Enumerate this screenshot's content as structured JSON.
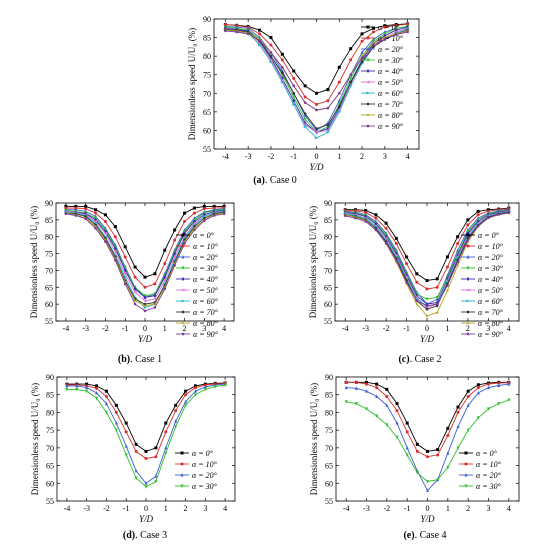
{
  "figure": {
    "ylabel": "Dimensionless speed U/U₀ (%)",
    "xlabel": "Y/D",
    "legend_prefix": "α = ",
    "colors": [
      "#000000",
      "#d4302f",
      "#3b5fd6",
      "#2ec02a",
      "#3a2aa8",
      "#e070e0",
      "#21b8c8",
      "#333333",
      "#b5a519",
      "#7a3a9a"
    ]
  },
  "chart_data": [
    {
      "type": "line",
      "caption_label": "(a)",
      "caption_text": ". Case 0",
      "x": [
        -4,
        -3.5,
        -3,
        -2.5,
        -2,
        -1.5,
        -1,
        -0.5,
        0,
        0.5,
        1,
        1.5,
        2,
        2.5,
        3,
        3.5,
        4
      ],
      "ylim": [
        55,
        90
      ],
      "yticks": [
        55,
        60,
        65,
        70,
        75,
        80,
        85,
        90
      ],
      "xticks": [
        -4,
        -3,
        -2,
        -1,
        0,
        1,
        2,
        3,
        4
      ],
      "legend_position": "top-right",
      "series": [
        {
          "name": "0°",
          "values": [
            88.5,
            88.3,
            88,
            87,
            85,
            80.5,
            76,
            72,
            70,
            71,
            77,
            82,
            86,
            87.5,
            88.2,
            88.5,
            88.7
          ]
        },
        {
          "name": "10°",
          "values": [
            88.5,
            88.2,
            87.8,
            86,
            83,
            79,
            74,
            69,
            67,
            68,
            73,
            79,
            84,
            86.5,
            87.8,
            88.3,
            88.6
          ]
        },
        {
          "name": "20°",
          "values": [
            88,
            87.8,
            87.5,
            85,
            81,
            76,
            70,
            64,
            60,
            62,
            68,
            75,
            81,
            84.5,
            86.5,
            87.5,
            88
          ]
        },
        {
          "name": "30°",
          "values": [
            87.8,
            87.5,
            87,
            84.5,
            80,
            75,
            69,
            63,
            59.5,
            61,
            67,
            74,
            80,
            84,
            86,
            87.5,
            88
          ]
        },
        {
          "name": "40°",
          "values": [
            87.5,
            87.2,
            86.8,
            84,
            79.5,
            74,
            68,
            62,
            59.5,
            60.5,
            66,
            73,
            79,
            83.5,
            85.5,
            87,
            87.8
          ]
        },
        {
          "name": "50°",
          "values": [
            87.3,
            87,
            86.5,
            83.5,
            79,
            73.5,
            67,
            61.5,
            59.5,
            60,
            65.5,
            72.5,
            78.5,
            83,
            85,
            86.5,
            87.5
          ]
        },
        {
          "name": "60°",
          "values": [
            87,
            86.8,
            86.2,
            83,
            78.5,
            73,
            67,
            61,
            58,
            59.5,
            65,
            72,
            78,
            82.5,
            84.5,
            86.2,
            87.3
          ]
        },
        {
          "name": "70°",
          "values": [
            87.2,
            87,
            86.5,
            84,
            80,
            75.5,
            70,
            64.5,
            60.5,
            61.5,
            66.5,
            73,
            78.5,
            82.5,
            84.5,
            86,
            87
          ]
        },
        {
          "name": "80°",
          "values": [
            87,
            86.8,
            86.2,
            84.5,
            81,
            77,
            72,
            67.5,
            65.5,
            66,
            70,
            75,
            80,
            83.5,
            85,
            86,
            86.8
          ]
        },
        {
          "name": "90°",
          "values": [
            86.8,
            86.5,
            86,
            84.2,
            81,
            77,
            72,
            67.5,
            65.5,
            66,
            70,
            75,
            79.5,
            83,
            84.5,
            85.8,
            86.5
          ]
        }
      ]
    },
    {
      "type": "line",
      "caption_label": "(b)",
      "caption_text": ". Case 1",
      "x": [
        -4,
        -3.5,
        -3,
        -2.5,
        -2,
        -1.5,
        -1,
        -0.5,
        0,
        0.5,
        1,
        1.5,
        2,
        2.5,
        3,
        3.5,
        4
      ],
      "ylim": [
        55,
        90
      ],
      "yticks": [
        55,
        60,
        65,
        70,
        75,
        80,
        85,
        90
      ],
      "xticks": [
        -4,
        -3,
        -2,
        -1,
        0,
        1,
        2,
        3,
        4
      ],
      "legend_position": "right",
      "series": [
        {
          "name": "0°",
          "values": [
            89,
            89,
            89,
            88,
            86.5,
            83,
            77,
            71,
            68,
            69,
            76,
            82,
            87,
            88.5,
            89,
            89,
            89
          ]
        },
        {
          "name": "10°",
          "values": [
            88.5,
            88.5,
            88.3,
            87,
            84.5,
            80,
            74,
            68,
            65,
            66,
            72,
            79,
            84.5,
            87,
            88.3,
            88.5,
            88.6
          ]
        },
        {
          "name": "20°",
          "values": [
            88,
            88,
            87.5,
            86,
            82.5,
            77.5,
            71,
            65,
            62,
            63,
            69,
            76,
            82,
            85.5,
            87.3,
            88,
            88.3
          ]
        },
        {
          "name": "30°",
          "values": [
            87.8,
            87.5,
            87,
            85.5,
            82,
            77,
            70.5,
            65,
            62.5,
            63,
            68.5,
            75.5,
            81.5,
            85,
            87,
            87.8,
            88
          ]
        },
        {
          "name": "40°",
          "values": [
            87.5,
            87.3,
            86.8,
            85,
            81.5,
            76.5,
            70,
            64.5,
            62,
            62.5,
            68,
            75,
            81,
            84.5,
            86.5,
            87.5,
            87.8
          ]
        },
        {
          "name": "50°",
          "values": [
            87.5,
            87.2,
            86.5,
            84.5,
            81,
            75.5,
            69,
            63.5,
            61,
            61.5,
            67,
            74,
            80,
            84,
            86,
            87.2,
            87.6
          ]
        },
        {
          "name": "60°",
          "values": [
            87.3,
            87,
            86.2,
            84,
            80,
            74.5,
            68,
            62,
            59,
            60,
            66,
            73,
            79.5,
            83.5,
            86,
            87,
            87.5
          ]
        },
        {
          "name": "70°",
          "values": [
            87,
            86.8,
            86,
            83.5,
            79.5,
            74,
            67,
            61.5,
            60,
            60.5,
            65.5,
            72.5,
            79,
            83,
            85.5,
            86.8,
            87.3
          ]
        },
        {
          "name": "80°",
          "values": [
            87,
            86.5,
            85.5,
            83,
            79,
            73.5,
            66.5,
            61,
            59.5,
            60,
            65,
            72,
            78.5,
            82.5,
            85,
            86.5,
            87
          ]
        },
        {
          "name": "90°",
          "values": [
            86.8,
            86.3,
            85.3,
            82.5,
            78.5,
            73,
            66,
            60,
            58,
            59,
            64.5,
            71.5,
            78,
            82,
            84.8,
            86.3,
            86.8
          ]
        }
      ]
    },
    {
      "type": "line",
      "caption_label": "(c)",
      "caption_text": ". Case 2",
      "x": [
        -4,
        -3.5,
        -3,
        -2.5,
        -2,
        -1.5,
        -1,
        -0.5,
        0,
        0.5,
        1,
        1.5,
        2,
        2.5,
        3,
        3.5,
        4
      ],
      "ylim": [
        55,
        90
      ],
      "yticks": [
        55,
        60,
        65,
        70,
        75,
        80,
        85,
        90
      ],
      "xticks": [
        -4,
        -3,
        -2,
        -1,
        0,
        1,
        2,
        3,
        4
      ],
      "legend_position": "right",
      "series": [
        {
          "name": "0°",
          "values": [
            88,
            88,
            87.8,
            86.5,
            84,
            79.5,
            74,
            69,
            67,
            67.5,
            74,
            80,
            85,
            87.5,
            88,
            88.2,
            88.5
          ]
        },
        {
          "name": "10°",
          "values": [
            87.8,
            87.7,
            87.2,
            85.5,
            82.5,
            78,
            72,
            66.5,
            64.5,
            65,
            71,
            78,
            83.5,
            86.5,
            87.6,
            88,
            88.3
          ]
        },
        {
          "name": "20°",
          "values": [
            87.5,
            87.3,
            86.5,
            84.5,
            81,
            76,
            69.5,
            63.5,
            60,
            61.5,
            68.5,
            76,
            82,
            85.5,
            87,
            87.7,
            88
          ]
        },
        {
          "name": "30°",
          "values": [
            87.3,
            87,
            86.2,
            84,
            80.5,
            75.5,
            69,
            63,
            61.5,
            62,
            68,
            75,
            81.5,
            85,
            86.8,
            87.5,
            87.9
          ]
        },
        {
          "name": "40°",
          "values": [
            87.2,
            86.8,
            86,
            83.8,
            80,
            75,
            68.5,
            62.5,
            60,
            60.5,
            67.5,
            74.5,
            81,
            84.5,
            86.5,
            87.3,
            87.8
          ]
        },
        {
          "name": "50°",
          "values": [
            87,
            86.5,
            85.5,
            83.2,
            79.5,
            74.5,
            68,
            62,
            59,
            60,
            67,
            74,
            80.5,
            84,
            86.2,
            87.1,
            87.6
          ]
        },
        {
          "name": "60°",
          "values": [
            86.8,
            86.3,
            85.3,
            83,
            79,
            74,
            67.5,
            61.5,
            59.5,
            60,
            66.5,
            73.5,
            80,
            83.7,
            86,
            87,
            87.5
          ]
        },
        {
          "name": "70°",
          "values": [
            86.5,
            86,
            85,
            82.5,
            78.5,
            73.5,
            67,
            61,
            58.5,
            59.5,
            66,
            73,
            79.5,
            83.4,
            85.8,
            86.8,
            87.3
          ]
        },
        {
          "name": "80°",
          "values": [
            86.5,
            85.8,
            84.8,
            82,
            78,
            72.5,
            66,
            60,
            56.5,
            57.5,
            64,
            71.5,
            78.5,
            83,
            85.5,
            86.5,
            87
          ]
        },
        {
          "name": "90°",
          "values": [
            86.2,
            85.5,
            84.5,
            82,
            78,
            73,
            66.5,
            61,
            59.5,
            60,
            65.5,
            72.5,
            79,
            83.2,
            85.6,
            86.6,
            87.1
          ]
        }
      ]
    },
    {
      "type": "line",
      "caption_label": "(d)",
      "caption_text": ". Case 3",
      "x": [
        -4,
        -3.5,
        -3,
        -2.5,
        -2,
        -1.5,
        -1,
        -0.5,
        0,
        0.5,
        1,
        1.5,
        2,
        2.5,
        3,
        3.5,
        4
      ],
      "ylim": [
        55,
        90
      ],
      "yticks": [
        55,
        60,
        65,
        70,
        75,
        80,
        85,
        90
      ],
      "xticks": [
        -4,
        -3,
        -2,
        -1,
        0,
        1,
        2,
        3,
        4
      ],
      "legend_position": "lower-right",
      "series": [
        {
          "name": "0°",
          "values": [
            88,
            88,
            88,
            87.5,
            86,
            82,
            77,
            71,
            69,
            70,
            77,
            82,
            86,
            87.5,
            88,
            88.2,
            88.3
          ]
        },
        {
          "name": "10°",
          "values": [
            87.8,
            87.8,
            87.5,
            86.8,
            84.5,
            80,
            74.5,
            69,
            67,
            67.5,
            74.5,
            80.5,
            85,
            87,
            87.7,
            88,
            88.2
          ]
        },
        {
          "name": "20°",
          "values": [
            87.5,
            87.5,
            87,
            85.5,
            82.5,
            77,
            70.5,
            63.5,
            60,
            62,
            70,
            77.5,
            83,
            86,
            87.2,
            87.7,
            88
          ]
        },
        {
          "name": "30°",
          "values": [
            86.5,
            86.5,
            86,
            84,
            80,
            75,
            68,
            61.5,
            59,
            60.5,
            68.5,
            76,
            82,
            85,
            86.5,
            87.3,
            87.7
          ]
        }
      ]
    },
    {
      "type": "line",
      "caption_label": "(e)",
      "caption_text": ". Case 4",
      "x": [
        -4,
        -3.5,
        -3,
        -2.5,
        -2,
        -1.5,
        -1,
        -0.5,
        0,
        0.5,
        1,
        1.5,
        2,
        2.5,
        3,
        3.5,
        4
      ],
      "ylim": [
        55,
        90
      ],
      "yticks": [
        55,
        60,
        65,
        70,
        75,
        80,
        85,
        90
      ],
      "xticks": [
        -4,
        -3,
        -2,
        -1,
        0,
        1,
        2,
        3,
        4
      ],
      "legend_position": "lower-right",
      "series": [
        {
          "name": "0°",
          "values": [
            88.5,
            88.5,
            88.5,
            88,
            86.5,
            82.5,
            77,
            71,
            69,
            69.5,
            75.5,
            81.5,
            86,
            87.8,
            88.3,
            88.5,
            88.5
          ]
        },
        {
          "name": "10°",
          "values": [
            88.5,
            88.5,
            88,
            87,
            84.5,
            80.5,
            74.5,
            69,
            67.5,
            68,
            73.5,
            80,
            84.5,
            87,
            88,
            88.3,
            88.4
          ]
        },
        {
          "name": "20°",
          "values": [
            87,
            86.8,
            86,
            84.5,
            82,
            77,
            70,
            63.5,
            58,
            61,
            68.5,
            76,
            82,
            85.5,
            87,
            87.6,
            88
          ]
        },
        {
          "name": "30°",
          "values": [
            83,
            82.5,
            81,
            79,
            76.5,
            73,
            68,
            63,
            60.5,
            61,
            64.5,
            70,
            75,
            78.5,
            81,
            82.5,
            83.5
          ]
        }
      ]
    }
  ]
}
